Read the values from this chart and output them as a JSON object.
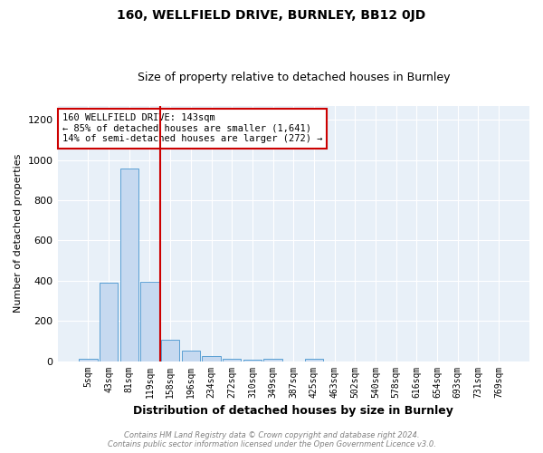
{
  "title": "160, WELLFIELD DRIVE, BURNLEY, BB12 0JD",
  "subtitle": "Size of property relative to detached houses in Burnley",
  "xlabel": "Distribution of detached houses by size in Burnley",
  "ylabel": "Number of detached properties",
  "bar_values": [
    10,
    390,
    960,
    395,
    105,
    50,
    25,
    12,
    8,
    10,
    0,
    12,
    0,
    0,
    0,
    0,
    0,
    0,
    0,
    0,
    0
  ],
  "bar_labels": [
    "5sqm",
    "43sqm",
    "81sqm",
    "119sqm",
    "158sqm",
    "196sqm",
    "234sqm",
    "272sqm",
    "310sqm",
    "349sqm",
    "387sqm",
    "425sqm",
    "463sqm",
    "502sqm",
    "540sqm",
    "578sqm",
    "616sqm",
    "654sqm",
    "693sqm",
    "731sqm",
    "769sqm"
  ],
  "bar_color": "#c6d9f0",
  "bar_edge_color": "#5a9fd4",
  "ylim": [
    0,
    1270
  ],
  "yticks": [
    0,
    200,
    400,
    600,
    800,
    1000,
    1200
  ],
  "red_line_color": "#cc0000",
  "annotation_line1": "160 WELLFIELD DRIVE: 143sqm",
  "annotation_line2": "← 85% of detached houses are smaller (1,641)",
  "annotation_line3": "14% of semi-detached houses are larger (272) →",
  "annotation_box_edge_color": "#cc0000",
  "footer_text": "Contains HM Land Registry data © Crown copyright and database right 2024.\nContains public sector information licensed under the Open Government Licence v3.0.",
  "bg_color": "#ffffff",
  "plot_bg_color": "#e8f0f8",
  "grid_color": "#ffffff",
  "title_fontsize": 10,
  "subtitle_fontsize": 9
}
